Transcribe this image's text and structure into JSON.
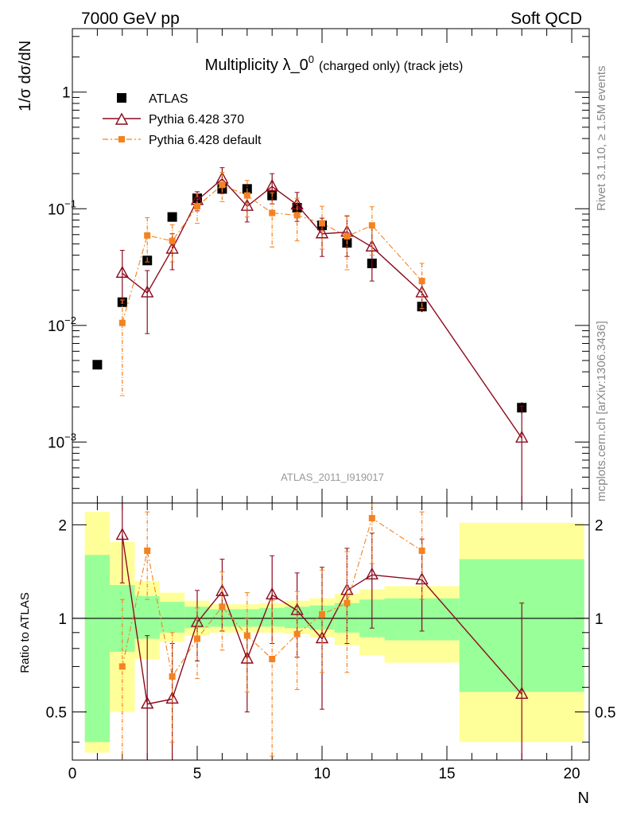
{
  "header": {
    "energy_label": "7000 GeV pp",
    "category_label": "Soft QCD"
  },
  "side_text": {
    "rivet": "Rivet 3.1.10, ≥ 1.5M events",
    "source": "mcplots.cern.ch [arXiv:1306.3436]"
  },
  "chart_data": [
    {
      "type": "scatter",
      "role": "main",
      "title": "Multiplicity λ_0",
      "title_sup": "0",
      "title_suffix": "(charged only) (track jets)",
      "analysis_id": "ATLAS_2011_I919017",
      "ylabel": "1/σ dσ/dN",
      "yscale": "log",
      "xlim": [
        0,
        20.7
      ],
      "ylim": [
        0.0003,
        3.5
      ],
      "y_ticks": [
        {
          "value": 1,
          "label": "1"
        },
        {
          "value": 0.1,
          "label": "10",
          "exp": "−1"
        },
        {
          "value": 0.01,
          "label": "10",
          "exp": "−2"
        },
        {
          "value": 0.001,
          "label": "10",
          "exp": "−3"
        }
      ],
      "legend_position": "top-left",
      "series": [
        {
          "name": "ATLAS",
          "color": "#000000",
          "marker": "square",
          "x": [
            1,
            2,
            3,
            4,
            5,
            6,
            7,
            8,
            9,
            10,
            11,
            12,
            14,
            18
          ],
          "y": [
            0.0046,
            0.0158,
            0.036,
            0.085,
            0.123,
            0.148,
            0.148,
            0.13,
            0.102,
            0.072,
            0.051,
            0.034,
            0.0145,
            0.00197
          ],
          "err": [
            0.00025,
            0.0012,
            0.0025,
            0.004,
            0.005,
            0.006,
            0.006,
            0.006,
            0.005,
            0.004,
            0.003,
            0.002,
            0.0015,
            0.00022
          ]
        },
        {
          "name": "Pythia 6.428 370",
          "color": "#8b0a1e",
          "marker": "triangle-open",
          "line": "solid",
          "x": [
            2,
            3,
            4,
            5,
            6,
            7,
            8,
            9,
            10,
            11,
            12,
            14,
            18
          ],
          "y": [
            0.028,
            0.019,
            0.045,
            0.118,
            0.18,
            0.105,
            0.155,
            0.108,
            0.061,
            0.063,
            0.047,
            0.019,
            0.00108
          ],
          "err_up": [
            0.016,
            0.0105,
            0.016,
            0.022,
            0.045,
            0.028,
            0.045,
            0.03,
            0.022,
            0.024,
            0.023,
            0.0055,
            0.00095
          ],
          "err_down": [
            0.0125,
            0.0105,
            0.015,
            0.022,
            0.045,
            0.028,
            0.045,
            0.03,
            0.022,
            0.024,
            0.023,
            0.0055,
            0.00085
          ]
        },
        {
          "name": "Pythia 6.428 default",
          "color": "#f58220",
          "marker": "square-filled",
          "line": "dashdot",
          "x": [
            2,
            3,
            4,
            5,
            6,
            7,
            8,
            9,
            10,
            11,
            12,
            14
          ],
          "y": [
            0.0105,
            0.059,
            0.053,
            0.105,
            0.16,
            0.13,
            0.092,
            0.088,
            0.075,
            0.058,
            0.072,
            0.024
          ],
          "err_up": [
            0.006,
            0.025,
            0.02,
            0.03,
            0.045,
            0.045,
            0.045,
            0.035,
            0.03,
            0.028,
            0.032,
            0.01
          ],
          "err_down": [
            0.008,
            0.024,
            0.018,
            0.03,
            0.045,
            0.045,
            0.045,
            0.035,
            0.03,
            0.028,
            0.032,
            0.01
          ]
        }
      ]
    },
    {
      "type": "scatter",
      "role": "ratio",
      "ylabel": "Ratio to ATLAS",
      "xlabel": "N",
      "xlim": [
        0,
        20.7
      ],
      "ylim": [
        0.35,
        2.35
      ],
      "yscale": "log",
      "reference_line": 1,
      "x_ticks": [
        {
          "value": 0,
          "label": "0"
        },
        {
          "value": 5,
          "label": "5"
        },
        {
          "value": 10,
          "label": "10"
        },
        {
          "value": 15,
          "label": "15"
        },
        {
          "value": 20,
          "label": "20"
        }
      ],
      "y_ticks": [
        {
          "value": 2,
          "label": "2"
        },
        {
          "value": 1,
          "label": "1"
        },
        {
          "value": 0.5,
          "label": "0.5"
        }
      ],
      "uncertainty_bands": [
        {
          "x_from": 0.5,
          "x_to": 1.5,
          "yellow": [
            0.37,
            2.2
          ],
          "green": [
            0.4,
            1.6
          ]
        },
        {
          "x_from": 1.5,
          "x_to": 2.5,
          "yellow": [
            0.5,
            1.76
          ],
          "green": [
            0.78,
            1.28
          ]
        },
        {
          "x_from": 2.5,
          "x_to": 3.5,
          "yellow": [
            0.74,
            1.32
          ],
          "green": [
            0.86,
            1.18
          ]
        },
        {
          "x_from": 3.5,
          "x_to": 4.5,
          "yellow": [
            0.84,
            1.21
          ],
          "green": [
            0.9,
            1.13
          ]
        },
        {
          "x_from": 4.5,
          "x_to": 5.5,
          "yellow": [
            0.88,
            1.14
          ],
          "green": [
            0.93,
            1.09
          ]
        },
        {
          "x_from": 5.5,
          "x_to": 7.5,
          "yellow": [
            0.9,
            1.11
          ],
          "green": [
            0.94,
            1.07
          ]
        },
        {
          "x_from": 7.5,
          "x_to": 8.5,
          "yellow": [
            0.9,
            1.12
          ],
          "green": [
            0.94,
            1.08
          ]
        },
        {
          "x_from": 8.5,
          "x_to": 9.5,
          "yellow": [
            0.89,
            1.14
          ],
          "green": [
            0.93,
            1.09
          ]
        },
        {
          "x_from": 9.5,
          "x_to": 10.5,
          "yellow": [
            0.87,
            1.16
          ],
          "green": [
            0.92,
            1.1
          ]
        },
        {
          "x_from": 10.5,
          "x_to": 11.5,
          "yellow": [
            0.82,
            1.2
          ],
          "green": [
            0.9,
            1.12
          ]
        },
        {
          "x_from": 11.5,
          "x_to": 12.5,
          "yellow": [
            0.76,
            1.24
          ],
          "green": [
            0.87,
            1.15
          ]
        },
        {
          "x_from": 12.5,
          "x_to": 15.5,
          "yellow": [
            0.72,
            1.27
          ],
          "green": [
            0.85,
            1.16
          ]
        },
        {
          "x_from": 15.5,
          "x_to": 20.5,
          "yellow": [
            0.4,
            2.03
          ],
          "green": [
            0.58,
            1.55
          ]
        }
      ],
      "series": [
        {
          "name": "Pythia 6.428 370",
          "color": "#8b0a1e",
          "marker": "triangle-open",
          "line": "solid",
          "x": [
            2,
            3,
            4,
            5,
            6,
            7,
            8,
            9,
            10,
            11,
            12,
            14,
            18
          ],
          "y": [
            1.85,
            0.53,
            0.55,
            0.97,
            1.22,
            0.74,
            1.19,
            1.06,
            0.86,
            1.23,
            1.38,
            1.33,
            0.57
          ],
          "err_up": [
            0.55,
            0.35,
            0.28,
            0.26,
            0.33,
            0.26,
            0.4,
            0.34,
            0.6,
            0.45,
            0.5,
            0.47,
            0.55
          ],
          "err_down": [
            0.55,
            0.27,
            0.2,
            0.24,
            0.31,
            0.24,
            0.36,
            0.31,
            0.35,
            0.4,
            0.45,
            0.42,
            0.27
          ]
        },
        {
          "name": "Pythia 6.428 default",
          "color": "#f58220",
          "marker": "square-filled",
          "line": "dashdot",
          "x": [
            2,
            3,
            4,
            5,
            6,
            7,
            8,
            9,
            10,
            11,
            12,
            14
          ],
          "y": [
            0.7,
            1.65,
            0.65,
            0.86,
            1.09,
            0.88,
            0.74,
            0.89,
            1.03,
            1.12,
            2.1,
            1.65
          ],
          "err_up": [
            0.45,
            0.55,
            0.25,
            0.22,
            0.32,
            0.33,
            0.4,
            0.33,
            0.4,
            0.52,
            0.6,
            0.55
          ],
          "err_down": [
            0.35,
            0.5,
            0.25,
            0.22,
            0.3,
            0.3,
            0.38,
            0.3,
            0.36,
            0.45,
            0.6,
            0.5
          ]
        }
      ]
    }
  ]
}
